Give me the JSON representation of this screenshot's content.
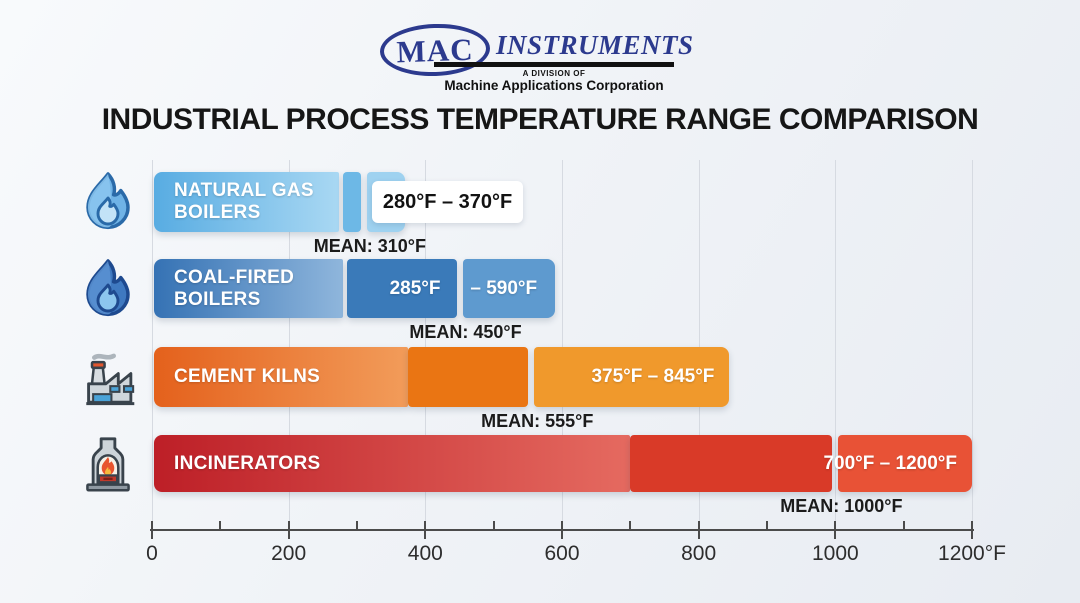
{
  "logo": {
    "mac": "MAC",
    "instruments": "INSTRUMENTS",
    "division": "A DIVISION OF",
    "company": "Machine Applications Corporation",
    "brand_color": "#2c3a8e"
  },
  "title": "INDUSTRIAL PROCESS TEMPERATURE RANGE COMPARISON",
  "chart_data": {
    "type": "bar",
    "orientation": "horizontal",
    "unit": "°F",
    "xlim": [
      0,
      1200
    ],
    "grid": "vertical, every 200",
    "axis": {
      "major_tick_values": [
        0,
        200,
        400,
        600,
        800,
        1000,
        1200
      ],
      "major_tick_labels": [
        "0",
        "200",
        "400",
        "600",
        "800",
        "1000",
        "1200°F"
      ],
      "minor_tick_interval": 100
    },
    "series": [
      {
        "label_lines": [
          "NATURAL GAS",
          "BOILERS"
        ],
        "icon": "gas-flame-icon",
        "min": 280,
        "max": 370,
        "mean": 310,
        "range_label": "280°F – 370°F",
        "range_placement": "callout",
        "mean_label": "MEAN: 310°F",
        "gap_at_min": true,
        "colors": {
          "seg1_from": "#58ace2",
          "seg1_to": "#a9d8f3",
          "seg2": "#6db8e6",
          "seg3": "#9fd2f0"
        }
      },
      {
        "label_lines": [
          "COAL-FIRED",
          "BOILERS"
        ],
        "icon": "coal-flame-icon",
        "min": 285,
        "max": 590,
        "mean": 450,
        "range_min_label": "285°F",
        "range_max_label": "– 590°F",
        "range_placement": "split",
        "mean_label": "MEAN: 450°F",
        "gap_at_min": true,
        "colors": {
          "seg1_from": "#3572b4",
          "seg1_to": "#8fb6dc",
          "seg2": "#3a7ab9",
          "seg3": "#5e9acf"
        }
      },
      {
        "label_lines": [
          "CEMENT KILNS"
        ],
        "icon": "factory-icon",
        "min": 375,
        "max": 845,
        "mean": 555,
        "range_label": "375°F – 845°F",
        "range_placement": "inside",
        "mean_label": "MEAN: 555°F",
        "gap_at_min": false,
        "colors": {
          "seg1_from": "#e4611c",
          "seg1_to": "#f29c5a",
          "seg2": "#ea7513",
          "seg3": "#f0992c"
        }
      },
      {
        "label_lines": [
          "INCINERATORS"
        ],
        "icon": "furnace-icon",
        "min": 700,
        "max": 1200,
        "mean": 1000,
        "range_label": "700°F – 1200°F",
        "range_placement": "inside",
        "mean_label": "MEAN: 1000°F",
        "gap_at_min": false,
        "colors": {
          "seg1_from": "#bd1f27",
          "seg1_to": "#e56a60",
          "seg2": "#d93a28",
          "seg3": "#e85236"
        }
      }
    ]
  }
}
